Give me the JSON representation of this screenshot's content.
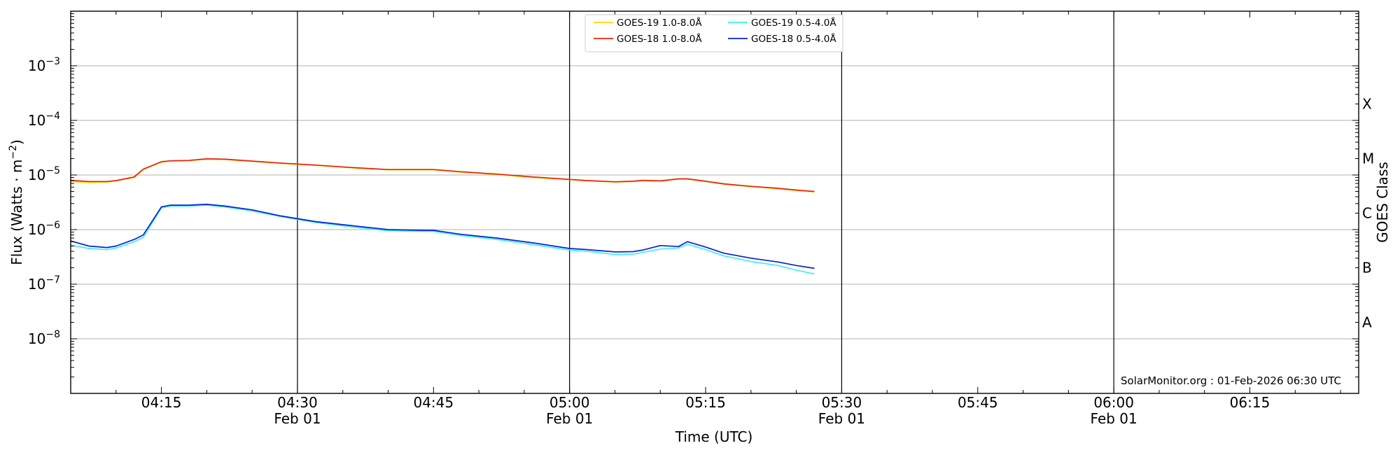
{
  "chart_data": {
    "type": "line",
    "xlabel": "Time (UTC)",
    "ylabel": "Flux (Watts · m",
    "ylabel_sup": "−2",
    "ylabel_close": ")",
    "right_label": "GOES Class",
    "y_scale": "log",
    "ylim": [
      1e-09,
      0.01
    ],
    "y_ticks": [
      {
        "base": "10",
        "exp": "−3",
        "value": 0.001
      },
      {
        "base": "10",
        "exp": "−4",
        "value": 0.0001
      },
      {
        "base": "10",
        "exp": "−5",
        "value": 1e-05
      },
      {
        "base": "10",
        "exp": "−6",
        "value": 1e-06
      },
      {
        "base": "10",
        "exp": "−7",
        "value": 1e-07
      },
      {
        "base": "10",
        "exp": "−8",
        "value": 1e-08
      }
    ],
    "xlim": [
      "04:05",
      "06:27"
    ],
    "x_ticks": [
      {
        "time": "04:15",
        "label": "04:15",
        "sub": ""
      },
      {
        "time": "04:30",
        "label": "04:30",
        "sub": "Feb 01"
      },
      {
        "time": "04:45",
        "label": "04:45",
        "sub": ""
      },
      {
        "time": "05:00",
        "label": "05:00",
        "sub": "Feb 01"
      },
      {
        "time": "05:15",
        "label": "05:15",
        "sub": ""
      },
      {
        "time": "05:30",
        "label": "05:30",
        "sub": "Feb 01"
      },
      {
        "time": "05:45",
        "label": "05:45",
        "sub": ""
      },
      {
        "time": "06:00",
        "label": "06:00",
        "sub": "Feb 01"
      },
      {
        "time": "06:15",
        "label": "06:15",
        "sub": ""
      }
    ],
    "vertical_lines": [
      "04:30",
      "05:00",
      "05:30",
      "06:00"
    ],
    "goes_classes": [
      {
        "label": "X",
        "value": 0.0002
      },
      {
        "label": "M",
        "value": 2e-05
      },
      {
        "label": "C",
        "value": 2e-06
      },
      {
        "label": "B",
        "value": 2e-07
      },
      {
        "label": "A",
        "value": 2e-08
      }
    ],
    "grid": "horizontal at decades",
    "legend_position": "top-center",
    "annotation": "SolarMonitor.org : 01-Feb-2026 06:30 UTC",
    "x": [
      "04:05",
      "04:07",
      "04:09",
      "04:10",
      "04:12",
      "04:13",
      "04:15",
      "04:16",
      "04:18",
      "04:20",
      "04:22",
      "04:25",
      "04:28",
      "04:32",
      "04:36",
      "04:40",
      "04:44",
      "04:45",
      "04:48",
      "04:52",
      "04:56",
      "05:00",
      "05:02",
      "05:05",
      "05:07",
      "05:08",
      "05:10",
      "05:12",
      "05:13",
      "05:15",
      "05:17",
      "05:20",
      "05:23",
      "05:25",
      "05:27"
    ],
    "series": [
      {
        "name": "GOES-19 1.0-8.0Å",
        "color": "#ffd700",
        "values": [
          7.6e-06,
          7.3e-06,
          7.4e-06,
          7.8e-06,
          9e-06,
          1.25e-05,
          1.72e-05,
          1.8e-05,
          1.82e-05,
          1.95e-05,
          1.92e-05,
          1.78e-05,
          1.63e-05,
          1.5e-05,
          1.35e-05,
          1.24e-05,
          1.24e-05,
          1.24e-05,
          1.13e-05,
          1.02e-05,
          9e-06,
          8.2e-06,
          7.8e-06,
          7.4e-06,
          7.6e-06,
          7.9e-06,
          7.7e-06,
          8.4e-06,
          8.4e-06,
          7.6e-06,
          6.8e-06,
          6.1e-06,
          5.6e-06,
          5.2e-06,
          4.9e-06
        ]
      },
      {
        "name": "GOES-18 1.0-8.0Å",
        "color": "#e8250c",
        "values": [
          8e-06,
          7.6e-06,
          7.6e-06,
          7.9e-06,
          9.2e-06,
          1.28e-05,
          1.75e-05,
          1.82e-05,
          1.85e-05,
          1.98e-05,
          1.95e-05,
          1.8e-05,
          1.66e-05,
          1.52e-05,
          1.37e-05,
          1.26e-05,
          1.26e-05,
          1.26e-05,
          1.15e-05,
          1.04e-05,
          9.2e-06,
          8.3e-06,
          7.9e-06,
          7.5e-06,
          7.7e-06,
          8e-06,
          7.8e-06,
          8.5e-06,
          8.5e-06,
          7.7e-06,
          6.9e-06,
          6.2e-06,
          5.7e-06,
          5.3e-06,
          5e-06
        ]
      },
      {
        "name": "GOES-19 0.5-4.0Å",
        "color": "#3ff0f0",
        "values": [
          5.2e-07,
          4.5e-07,
          4.3e-07,
          4.6e-07,
          6e-07,
          7.2e-07,
          2.5e-06,
          2.7e-06,
          2.7e-06,
          2.8e-06,
          2.6e-06,
          2.2e-06,
          1.75e-06,
          1.35e-06,
          1.12e-06,
          9.5e-07,
          9.3e-07,
          9.3e-07,
          7.8e-07,
          6.6e-07,
          5.3e-07,
          4.2e-07,
          4e-07,
          3.5e-07,
          3.55e-07,
          3.8e-07,
          4.4e-07,
          4.6e-07,
          5.4e-07,
          4.3e-07,
          3.3e-07,
          2.6e-07,
          2.2e-07,
          1.8e-07,
          1.55e-07
        ]
      },
      {
        "name": "GOES-18 0.5-4.0Å",
        "color": "#0a1fd6",
        "values": [
          6.2e-07,
          5e-07,
          4.7e-07,
          5e-07,
          6.6e-07,
          8e-07,
          2.6e-06,
          2.8e-06,
          2.8e-06,
          2.9e-06,
          2.7e-06,
          2.3e-06,
          1.8e-06,
          1.4e-06,
          1.18e-06,
          1e-06,
          9.7e-07,
          9.7e-07,
          8.2e-07,
          7e-07,
          5.7e-07,
          4.5e-07,
          4.3e-07,
          3.9e-07,
          3.95e-07,
          4.2e-07,
          5.1e-07,
          4.9e-07,
          6e-07,
          4.8e-07,
          3.7e-07,
          3e-07,
          2.55e-07,
          2.2e-07,
          1.95e-07
        ]
      }
    ]
  }
}
